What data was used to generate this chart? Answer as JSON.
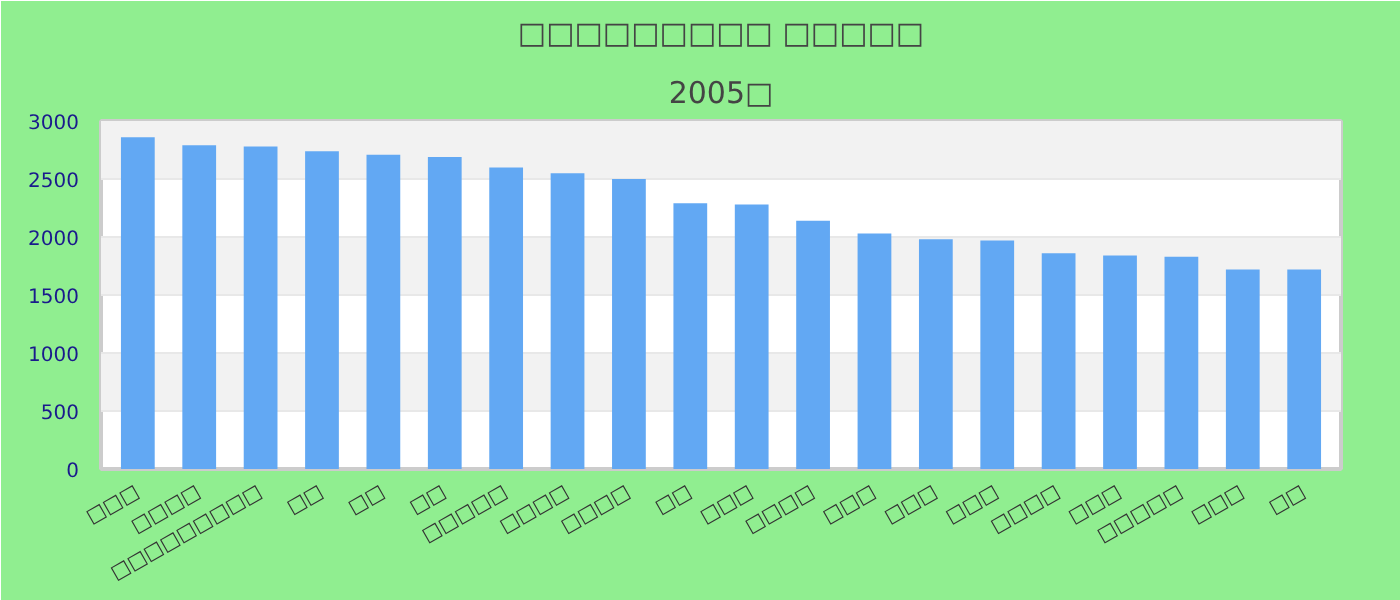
{
  "chart_data": {
    "type": "bar",
    "title": "□□□□□□□□□ □□□□□",
    "subtitle": "2005□",
    "categories": [
      "□□□",
      "□□□□",
      "□□□□□□□□□",
      "□□",
      "□□",
      "□□",
      "□□□□□",
      "□□□□",
      "□□□□",
      "□□",
      "□□□",
      "□□□□",
      "□□□",
      "□□□",
      "□□□",
      "□□□□",
      "□□□",
      "□□□□□",
      "□□□",
      "□□"
    ],
    "values": [
      2860,
      2790,
      2780,
      2740,
      2710,
      2690,
      2600,
      2550,
      2500,
      2290,
      2280,
      2140,
      2030,
      1980,
      1970,
      1860,
      1840,
      1830,
      1720,
      1720
    ],
    "color": "#62a8f3",
    "ylim": [
      0,
      3000
    ],
    "yticks": [
      0,
      500,
      1000,
      1500,
      2000,
      2500,
      3000
    ],
    "grid": "y"
  }
}
